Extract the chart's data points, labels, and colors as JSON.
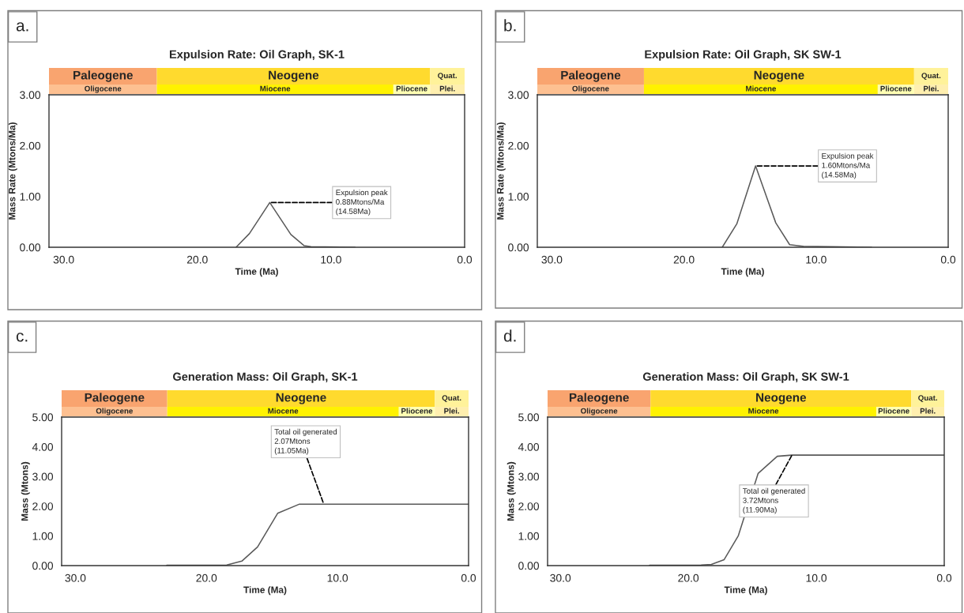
{
  "chart_data": [
    {
      "type": "line",
      "title": "Expulsion Rate: Oil Graph, SK-1",
      "xlabel": "Time (Ma)",
      "ylabel": "Mass Rate (Mtons/Ma)",
      "series": [
        {
          "color": "#595959",
          "x": [
            17.1,
            16.1,
            14.58,
            13.0,
            12.0,
            11.5,
            8.2
          ],
          "values": [
            0.0,
            0.27,
            0.88,
            0.25,
            0.03,
            0.01,
            0.0
          ]
        }
      ],
      "xlim": [
        31.1,
        0
      ],
      "xticks": [
        {
          "value": 30,
          "label": "30.0"
        },
        {
          "value": 20,
          "label": "20.0"
        },
        {
          "value": 10,
          "label": "10.0"
        },
        {
          "value": 0,
          "label": "0.0"
        }
      ],
      "ylim": [
        0,
        3
      ],
      "yticks": [
        {
          "value": 0,
          "label": "0.00"
        },
        {
          "value": 1,
          "label": "1.00"
        },
        {
          "value": 2,
          "label": "2.00"
        },
        {
          "value": 3,
          "label": "3.00"
        }
      ],
      "annotations": [
        "a.",
        {
          "text": "Expulsion peak\n0.88Mtons/Ma\n(14.58Ma)",
          "x": 14.58,
          "y": 0.88
        }
      ],
      "grid": false,
      "legend": false
    },
    {
      "type": "other",
      "annotations": [
        "Paleogene",
        "Neogene",
        "Quat.",
        "Oligocene",
        "Miocene",
        "Pliocene",
        "Plei."
      ],
      "colors": [
        "#f9a46f",
        "#ffda2e",
        "#fff29a",
        "#fdc091",
        "#fff200",
        "#ffffb3",
        "#ffefaf"
      ]
    },
    {
      "type": "line",
      "title": "Expulsion Rate: Oil Graph, SK SW-1",
      "xlabel": "Time (Ma)",
      "ylabel": "Mass Rate (Mtons/Ma)",
      "series": [
        {
          "color": "#595959",
          "x": [
            17.1,
            16.0,
            14.58,
            13.05,
            12.0,
            11.0,
            5.8
          ],
          "values": [
            0.0,
            0.46,
            1.6,
            0.48,
            0.05,
            0.02,
            0.0
          ]
        }
      ],
      "xlim": [
        31.1,
        0
      ],
      "xticks": [
        {
          "value": 30,
          "label": "30.0"
        },
        {
          "value": 20,
          "label": "20.0"
        },
        {
          "value": 10,
          "label": "10.0"
        },
        {
          "value": 0,
          "label": "0.0"
        }
      ],
      "ylim": [
        0,
        3
      ],
      "yticks": [
        {
          "value": 0,
          "label": "0.00"
        },
        {
          "value": 1,
          "label": "1.00"
        },
        {
          "value": 2,
          "label": "2.00"
        },
        {
          "value": 3,
          "label": "3.00"
        }
      ],
      "annotations": [
        "b.",
        {
          "text": "Expulsion peak\n1.60Mtons/Ma\n(14.58Ma)",
          "x": 14.58,
          "y": 1.6
        }
      ],
      "grid": false,
      "legend": false
    },
    {
      "type": "other",
      "annotations": [
        "Paleogene",
        "Neogene",
        "Quat.",
        "Oligocene",
        "Miocene",
        "Pliocene",
        "Plei."
      ],
      "colors": [
        "#f9a46f",
        "#ffda2e",
        "#fff29a",
        "#fdc091",
        "#fff200",
        "#ffffb3",
        "#ffefaf"
      ]
    },
    {
      "type": "line",
      "title": "Generation Mass: Oil Graph, SK-1",
      "xlabel": "Time (Ma)",
      "ylabel": "Mass (Mtons)",
      "series": [
        {
          "color": "#595959",
          "x": [
            23.03,
            18.45,
            17.3,
            16.1,
            14.57,
            12.9,
            11.05,
            0
          ],
          "values": [
            0.01,
            0.02,
            0.15,
            0.63,
            1.76,
            2.07,
            2.07,
            2.07
          ]
        }
      ],
      "xlim": [
        31.05,
        0
      ],
      "xticks": [
        {
          "value": 30,
          "label": "30.0"
        },
        {
          "value": 20,
          "label": "20.0"
        },
        {
          "value": 10,
          "label": "10.0"
        },
        {
          "value": 0,
          "label": "0.0"
        }
      ],
      "ylim": [
        0,
        5
      ],
      "yticks": [
        {
          "value": 0,
          "label": "0.00"
        },
        {
          "value": 1,
          "label": "1.00"
        },
        {
          "value": 2,
          "label": "2.00"
        },
        {
          "value": 3,
          "label": "3.00"
        },
        {
          "value": 4,
          "label": "4.00"
        },
        {
          "value": 5,
          "label": "5.00"
        }
      ],
      "annotations": [
        "c.",
        {
          "text": "Total oil generated\n2.07Mtons\n(11.05Ma)",
          "x": 11.05,
          "y": 2.07
        }
      ],
      "grid": false,
      "legend": false
    },
    {
      "type": "other",
      "annotations": [
        "Paleogene",
        "Neogene",
        "Quat.",
        "Oligocene",
        "Miocene",
        "Pliocene",
        "Plei."
      ],
      "colors": [
        "#f9a46f",
        "#ffda2e",
        "#fff29a",
        "#fdc091",
        "#fff200",
        "#ffffb3",
        "#ffefaf"
      ]
    },
    {
      "type": "line",
      "title": "Generation Mass: Oil Graph, SK SW-1",
      "xlabel": "Time (Ma)",
      "ylabel": "Mass (Mtons)",
      "series": [
        {
          "color": "#595959",
          "x": [
            23.03,
            19.0,
            18.2,
            17.2,
            16.1,
            14.55,
            13.05,
            11.9,
            0
          ],
          "values": [
            0.01,
            0.02,
            0.04,
            0.2,
            1.0,
            3.1,
            3.68,
            3.72,
            3.72
          ]
        }
      ],
      "xlim": [
        31.0,
        0
      ],
      "xticks": [
        {
          "value": 30,
          "label": "30.0"
        },
        {
          "value": 20,
          "label": "20.0"
        },
        {
          "value": 10,
          "label": "10.0"
        },
        {
          "value": 0,
          "label": "0.0"
        }
      ],
      "ylim": [
        0,
        5
      ],
      "yticks": [
        {
          "value": 0,
          "label": "0.00"
        },
        {
          "value": 1,
          "label": "1.00"
        },
        {
          "value": 2,
          "label": "2.00"
        },
        {
          "value": 3,
          "label": "3.00"
        },
        {
          "value": 4,
          "label": "4.00"
        },
        {
          "value": 5,
          "label": "5.00"
        }
      ],
      "annotations": [
        "d.",
        {
          "text": "Total oil generated\n3.72Mtons\n(11.90Ma)",
          "x": 11.9,
          "y": 3.72
        }
      ],
      "grid": false,
      "legend": false
    },
    {
      "type": "other",
      "annotations": [
        "Paleogene",
        "Neogene",
        "Quat.",
        "Oligocene",
        "Miocene",
        "Pliocene",
        "Plei."
      ],
      "colors": [
        "#f9a46f",
        "#ffda2e",
        "#fff29a",
        "#fdc091",
        "#fff200",
        "#ffffb3",
        "#ffefaf"
      ]
    }
  ]
}
